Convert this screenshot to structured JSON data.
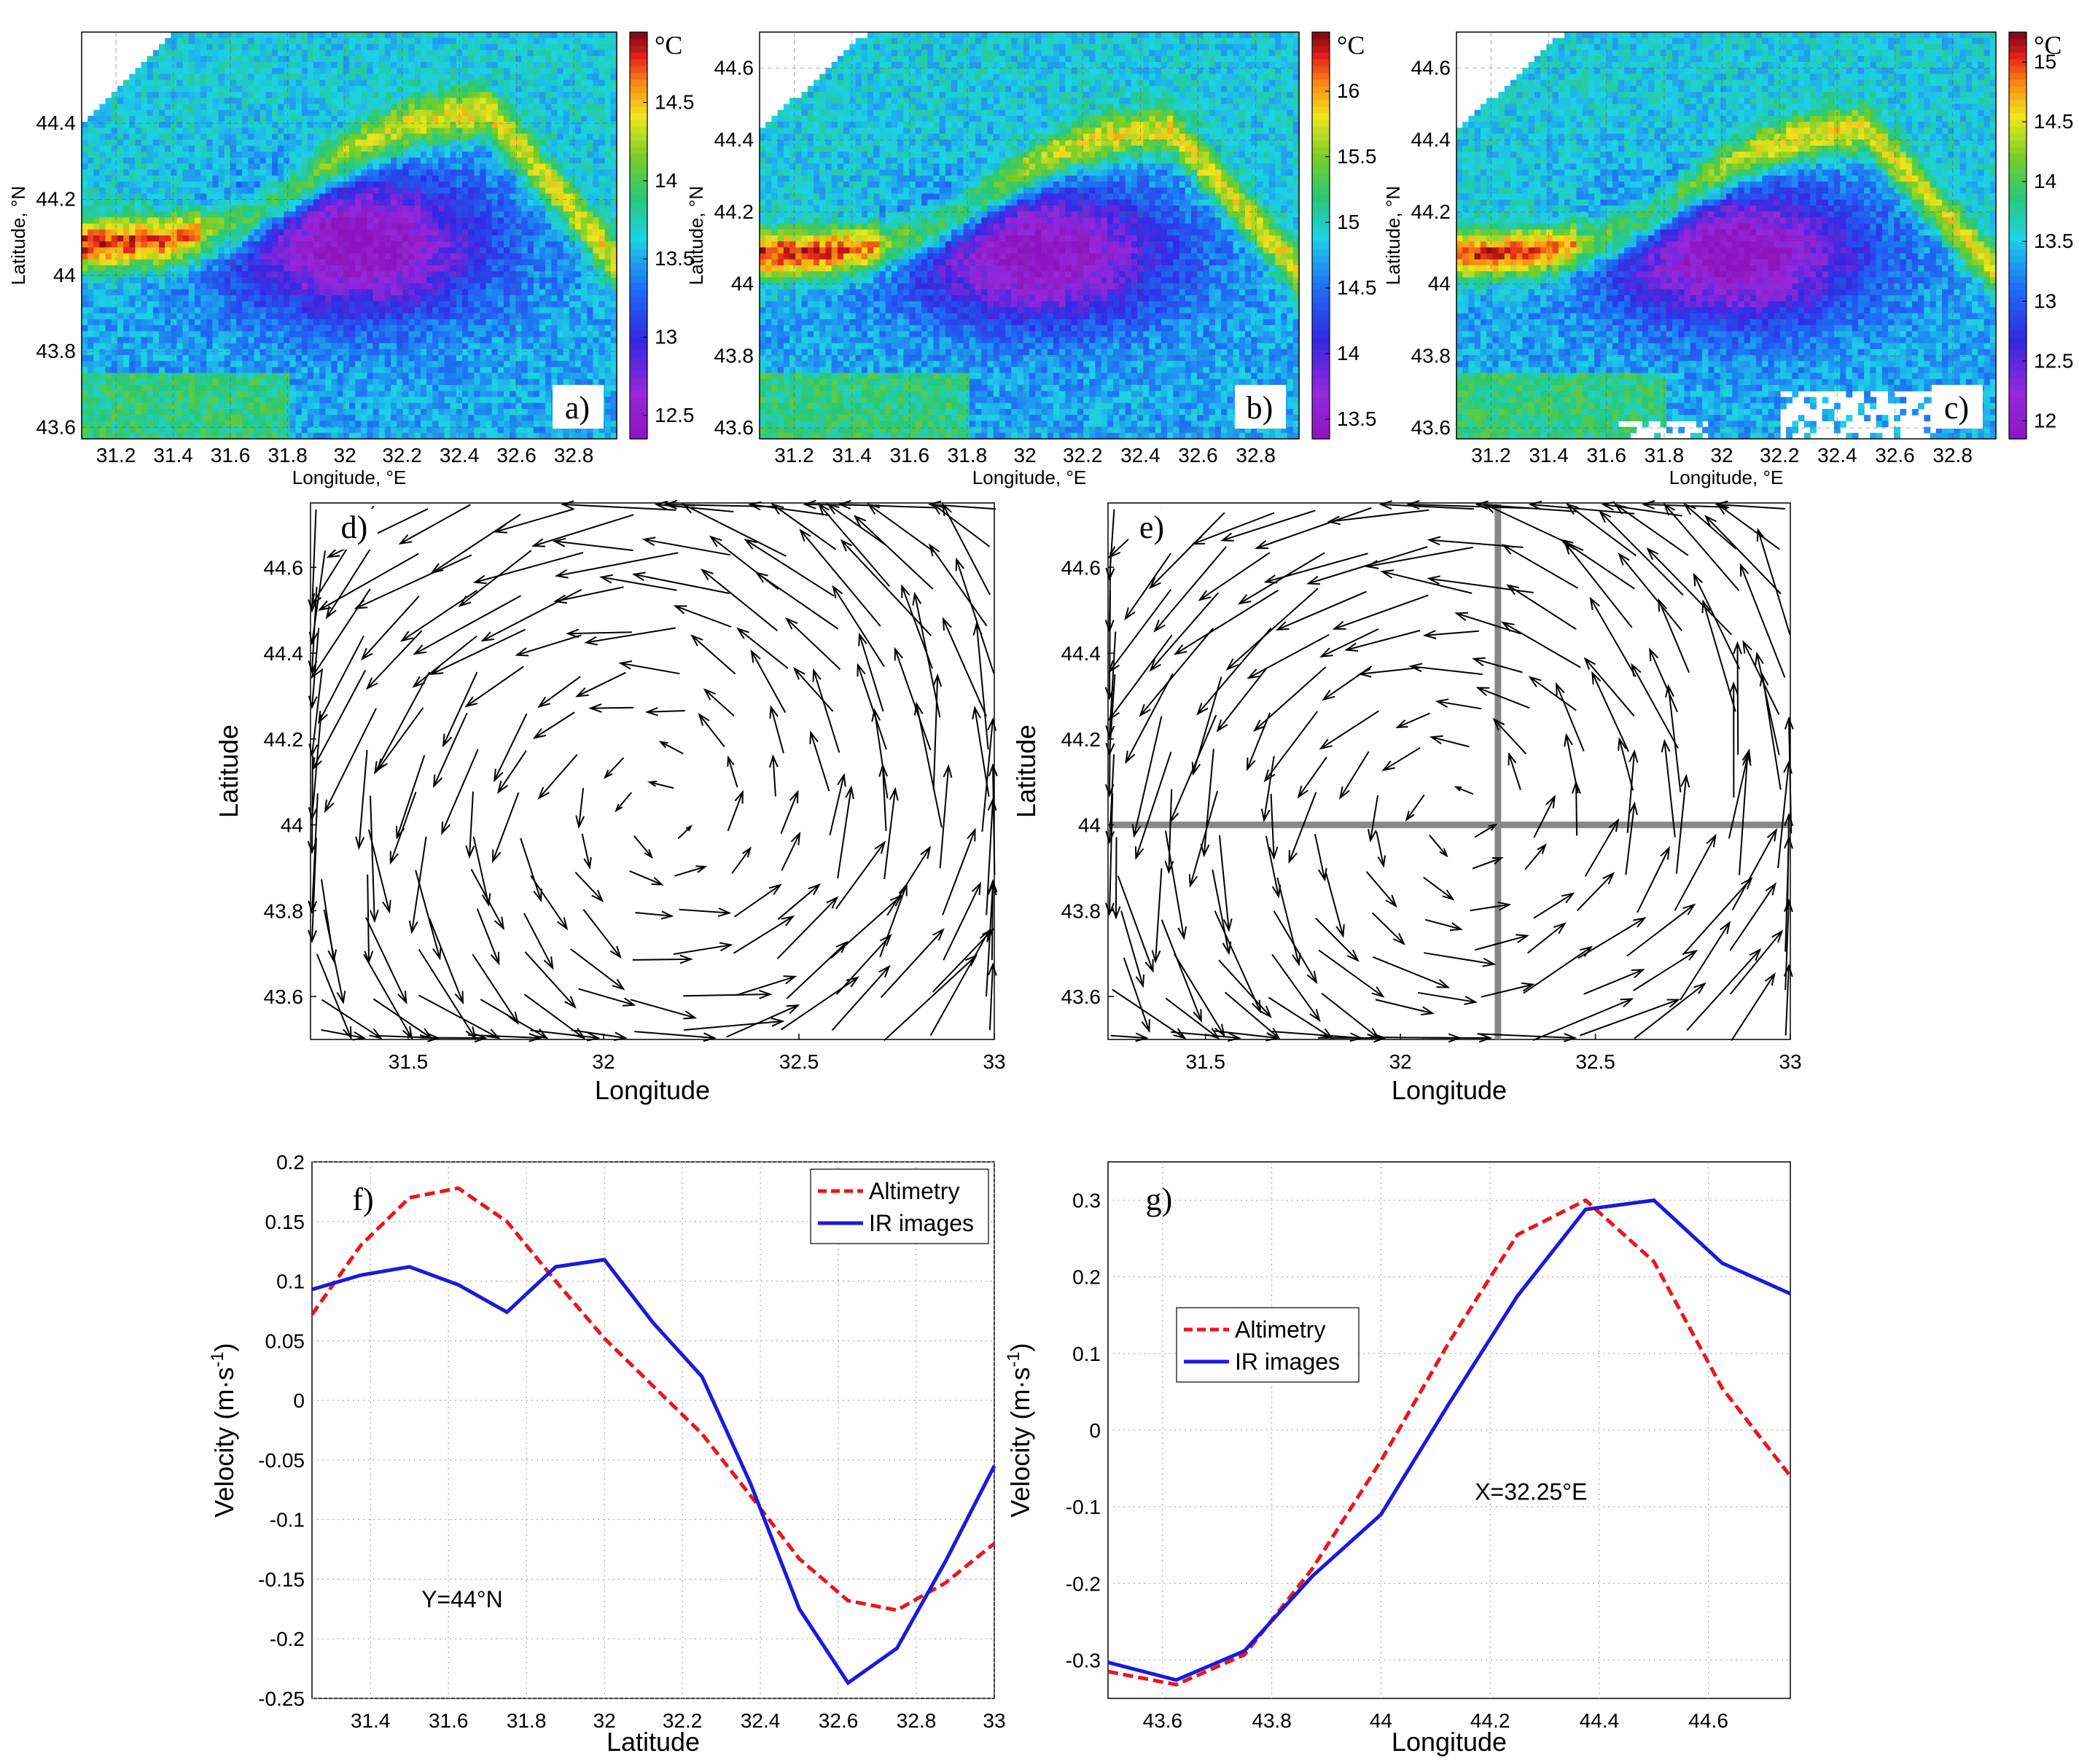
{
  "chart_data": [
    {
      "id": "a",
      "type": "heatmap",
      "panel_label": "a)",
      "xlabel": "Longitude, °E",
      "ylabel": "Latitude, °N",
      "xticks": [
        "31.2",
        "31.4",
        "31.6",
        "31.8",
        "32",
        "32.2",
        "32.4",
        "32.6",
        "32.8"
      ],
      "yticks": [
        "44.4",
        "44.2",
        "44",
        "43.8",
        "43.6"
      ],
      "xlim": [
        31.08,
        32.95
      ],
      "ylim": [
        43.57,
        44.64
      ],
      "colorbar_unit": "°C",
      "colorbar_ticks": [
        "14.5",
        "14",
        "13.5",
        "13",
        "12.5"
      ],
      "colorbar_range": [
        12.35,
        14.95
      ]
    },
    {
      "id": "b",
      "type": "heatmap",
      "panel_label": "b)",
      "xlabel": "Longitude, °E",
      "ylabel": "Latitude, °N",
      "xticks": [
        "31.2",
        "31.4",
        "31.6",
        "31.8",
        "32",
        "32.2",
        "32.4",
        "32.6",
        "32.8"
      ],
      "yticks": [
        "44.6",
        "44.4",
        "44.2",
        "44",
        "43.8",
        "43.6"
      ],
      "xlim": [
        31.08,
        32.95
      ],
      "ylim": [
        43.57,
        44.7
      ],
      "colorbar_unit": "°C",
      "colorbar_ticks": [
        "16",
        "15.5",
        "15",
        "14.5",
        "14",
        "13.5"
      ],
      "colorbar_range": [
        13.35,
        16.45
      ]
    },
    {
      "id": "c",
      "type": "heatmap",
      "panel_label": "c)",
      "xlabel": "Longitude, °E",
      "ylabel": "Latitude, °N",
      "xticks": [
        "31.2",
        "31.4",
        "31.6",
        "31.8",
        "32",
        "32.2",
        "32.4",
        "32.6",
        "32.8"
      ],
      "yticks": [
        "44.6",
        "44.4",
        "44.2",
        "44",
        "43.8",
        "43.6"
      ],
      "xlim": [
        31.08,
        32.95
      ],
      "ylim": [
        43.57,
        44.7
      ],
      "colorbar_unit": "°C",
      "colorbar_ticks": [
        "15",
        "14.5",
        "14",
        "13.5",
        "13",
        "12.5",
        "12"
      ],
      "colorbar_range": [
        11.85,
        15.25
      ]
    },
    {
      "id": "d",
      "type": "quiver",
      "panel_label": "d)",
      "xlabel": "Longitude",
      "ylabel": "Latitude",
      "xticks": [
        "31.5",
        "32",
        "32.5",
        "33"
      ],
      "yticks": [
        "44.6",
        "44.4",
        "44.2",
        "44",
        "43.8",
        "43.6"
      ],
      "xlim": [
        31.25,
        33
      ],
      "ylim": [
        43.5,
        44.75
      ],
      "description_center": [
        32.15,
        44.02
      ]
    },
    {
      "id": "e",
      "type": "quiver",
      "panel_label": "e)",
      "xlabel": "Longitude",
      "ylabel": "Latitude",
      "xticks": [
        "31.5",
        "32",
        "32.5",
        "33"
      ],
      "yticks": [
        "44.6",
        "44.4",
        "44.2",
        "44",
        "43.8",
        "43.6"
      ],
      "xlim": [
        31.25,
        33
      ],
      "ylim": [
        43.5,
        44.75
      ],
      "section_lines": {
        "vertical_x": 32.25,
        "horizontal_y": 44.0
      }
    },
    {
      "id": "f",
      "type": "line",
      "panel_label": "f)",
      "xlabel": "Latitude",
      "ylabel": "Velocity  (m·s",
      "ylabel_sup": "-1",
      "ylabel_end": ")",
      "xlim": [
        31.25,
        33
      ],
      "ylim": [
        -0.25,
        0.2
      ],
      "xticks": [
        "31.4",
        "31.6",
        "31.8",
        "32",
        "32.2",
        "32.4",
        "32.6",
        "32.8",
        "33"
      ],
      "yticks": [
        "0.2",
        "0.15",
        "0.1",
        "0.05",
        "0",
        "-0.05",
        "-0.1",
        "-0.15",
        "-0.2",
        "-0.25"
      ],
      "annotation": "Y=44°N",
      "series": [
        {
          "name": "Altimetry",
          "color": "#e8161b",
          "dash": true,
          "x": [
            31.25,
            31.375,
            31.5,
            31.625,
            31.75,
            31.875,
            32.0,
            32.125,
            32.25,
            32.375,
            32.5,
            32.625,
            32.75,
            32.875,
            33.0
          ],
          "y": [
            0.072,
            0.13,
            0.17,
            0.178,
            0.15,
            0.1,
            0.052,
            0.012,
            -0.028,
            -0.08,
            -0.133,
            -0.168,
            -0.176,
            -0.153,
            -0.12
          ]
        },
        {
          "name": "IR images",
          "color": "#1a1adb",
          "dash": false,
          "x": [
            31.25,
            31.375,
            31.5,
            31.625,
            31.75,
            31.875,
            32.0,
            32.125,
            32.25,
            32.375,
            32.5,
            32.625,
            32.75,
            32.875,
            33.0
          ],
          "y": [
            0.093,
            0.105,
            0.112,
            0.097,
            0.074,
            0.112,
            0.118,
            0.065,
            0.02,
            -0.07,
            -0.175,
            -0.237,
            -0.208,
            -0.135,
            -0.055
          ]
        }
      ]
    },
    {
      "id": "g",
      "type": "line",
      "panel_label": "g)",
      "xlabel": "Longitude",
      "ylabel": "Velocity  (m·s",
      "ylabel_sup": "-1",
      "ylabel_end": ")",
      "xlim": [
        43.5,
        44.75
      ],
      "ylim": [
        -0.35,
        0.35
      ],
      "xticks": [
        "43.6",
        "43.8",
        "44",
        "44.2",
        "44.4",
        "44.6"
      ],
      "yticks": [
        "0.3",
        "0.2",
        "0.1",
        "0",
        "-0.1",
        "-0.2",
        "-0.3"
      ],
      "annotation": "X=32.25°E",
      "series": [
        {
          "name": "Altimetry",
          "color": "#e8161b",
          "dash": true,
          "x": [
            43.5,
            43.625,
            43.75,
            43.875,
            44.0,
            44.125,
            44.25,
            44.375,
            44.5,
            44.625,
            44.75
          ],
          "y": [
            -0.315,
            -0.332,
            -0.293,
            -0.18,
            -0.04,
            0.115,
            0.255,
            0.3,
            0.22,
            0.055,
            -0.06
          ]
        },
        {
          "name": "IR images",
          "color": "#1a1adb",
          "dash": false,
          "x": [
            43.5,
            43.625,
            43.75,
            43.875,
            44.0,
            44.125,
            44.25,
            44.375,
            44.5,
            44.625,
            44.75
          ],
          "y": [
            -0.303,
            -0.326,
            -0.288,
            -0.19,
            -0.11,
            0.035,
            0.175,
            0.288,
            0.3,
            0.218,
            0.178
          ]
        }
      ]
    }
  ]
}
